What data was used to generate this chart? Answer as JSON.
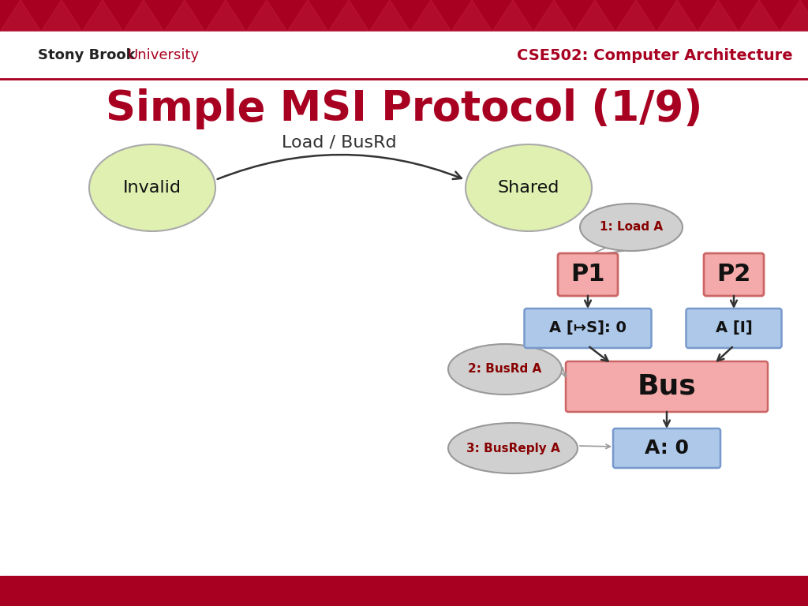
{
  "title": "Simple MSI Protocol (1/9)",
  "subtitle": "Load / BusRd",
  "header_right": "CSE502: Computer Architecture",
  "title_color": "#a80020",
  "header_text_color": "#a80020",
  "invalid_label": "Invalid",
  "shared_label": "Shared",
  "ellipse_fill": "#dff0b0",
  "ellipse_edge": "#aaaaaa",
  "p1_label": "P1",
  "p2_label": "P2",
  "p_fill": "#f4aaaa",
  "p_edge": "#cc6666",
  "cache1_label": "A [↦S]: 0",
  "cache2_label": "A [I]",
  "cache_fill": "#adc8e8",
  "cache_edge": "#7799cc",
  "bus_label": "Bus",
  "bus_fill": "#f4aaaa",
  "bus_edge": "#cc6666",
  "mem_label": "A: 0",
  "mem_fill": "#adc8e8",
  "mem_edge": "#7799cc",
  "bubble1_label": "1: Load A",
  "bubble2_label": "2: BusRd A",
  "bubble3_label": "3: BusReply A",
  "bubble_fill": "#d0d0d0",
  "bubble_edge": "#999999",
  "bubble_text_color": "#880000",
  "arrow_color": "#333333",
  "bottom_bar_color": "#a80020",
  "header_band_color": "#a80020",
  "bg_color": "#ffffff"
}
